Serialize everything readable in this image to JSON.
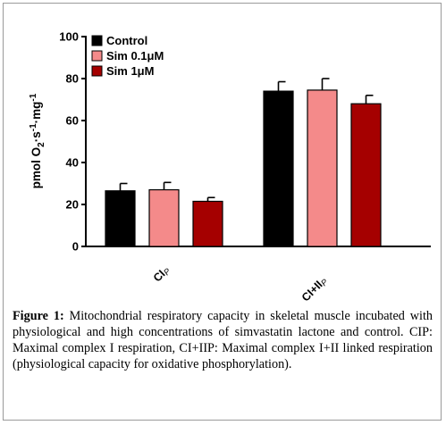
{
  "chart_data": {
    "type": "bar",
    "ylabel_main": "pmol O",
    "ylabel_sub": "2",
    "ylabel_rest": "·s",
    "ylabel_sup1": "-1",
    "ylabel_rest2": "·mg",
    "ylabel_sup2": "-1",
    "ylim": [
      0,
      100
    ],
    "yticks": [
      "0",
      "20",
      "40",
      "60",
      "80",
      "100"
    ],
    "yticks_values": [
      0,
      20,
      40,
      60,
      80,
      100
    ],
    "categories": [
      {
        "main": "CI",
        "sub": "P"
      },
      {
        "main": "CI+II",
        "sub": "P"
      }
    ],
    "series": [
      {
        "name": "Control",
        "color": "#000000",
        "values": [
          26.5,
          74
        ],
        "errors": [
          3.5,
          4.5
        ]
      },
      {
        "name": "Sim 0.1μM",
        "color": "#f48a8a",
        "values": [
          27,
          74.5
        ],
        "errors": [
          3.5,
          5.5
        ]
      },
      {
        "name": "Sim 1μM",
        "color": "#a50000",
        "values": [
          21.5,
          68
        ],
        "errors": [
          1.8,
          4
        ]
      }
    ],
    "legend_position": "top-left"
  },
  "caption": {
    "label": "Figure 1:",
    "text": " Mitochondrial respiratory capacity in skeletal muscle incubated with physiological and high concentrations of simvastatin lactone and control. CIP: Maximal complex I respiration, CI+IIP: Maximal complex I+II linked respiration (physiological capacity for oxidative phosphorylation)."
  }
}
